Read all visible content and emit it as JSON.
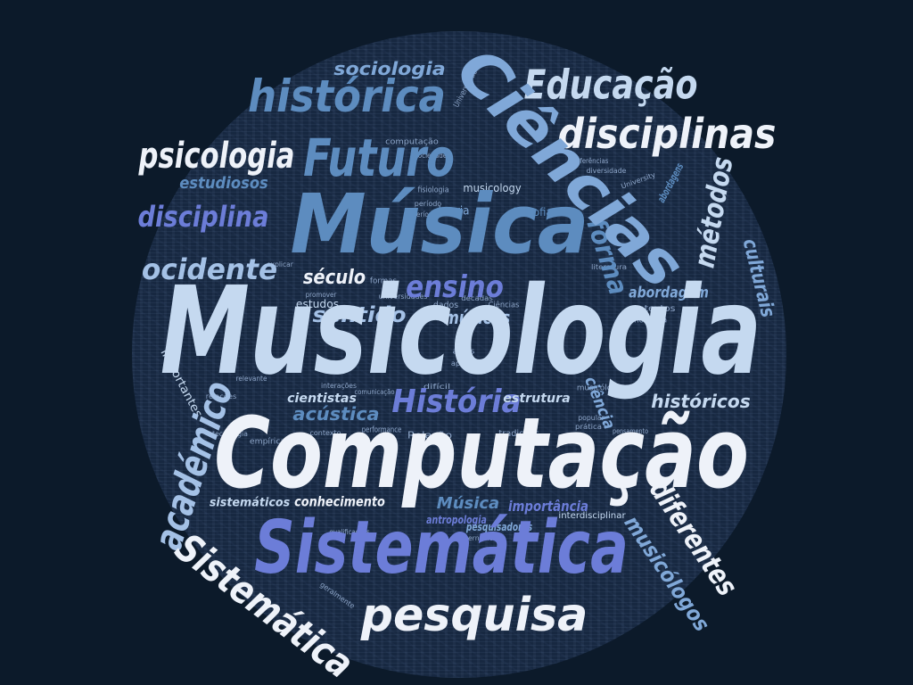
{
  "palette": {
    "background": "#0c1a2a",
    "cloud": "#172841",
    "white": "#eef2f9",
    "pale": "#c5d9f0",
    "light": "#a4c1e6",
    "sky": "#80a8d8",
    "steel": "#5d8cbf",
    "periwinkle": "#6c7dd8",
    "muted": "#8ea6c9"
  },
  "cloud": {
    "words": [
      "Musicologia",
      "Computação",
      "Sistemática",
      "Música",
      "Ciências",
      "Futuro",
      "histórica",
      "Educação",
      "disciplinas",
      "psicologia",
      "sociologia",
      "estudiosos",
      "disciplina",
      "ocidente",
      "métodos",
      "culturais",
      "forma",
      "ensino",
      "século",
      "sentido",
      "músicos",
      "abordagem",
      "académico",
      "Sistemática",
      "pesquisa",
      "História",
      "acústica",
      "cientistas",
      "históricos",
      "ciência",
      "estrutura",
      "conhecimento",
      "sistemáticos",
      "Música",
      "importância",
      "antropologia",
      "interdisciplinar",
      "pesquisadores",
      "diferentes",
      "musicólogos",
      "importantes",
      "abordagens",
      "teoria",
      "filosofia",
      "musicology",
      "fisiologia",
      "computação",
      "Universidade",
      "estudos",
      "contextos",
      "moderna",
      "Relação",
      "performance",
      "tradições",
      "Ciências",
      "dados",
      "musicólogo",
      "empírica",
      "tecnologia",
      "relações",
      "relevante",
      "interações",
      "comunicação",
      "qualificações",
      "geralmente",
      "difícil",
      "literatura",
      "prática",
      "pensamento",
      "popular",
      "sociedades",
      "conferências",
      "diversidade",
      "University",
      "período",
      "períodos",
      "universidades",
      "décadas",
      "formas",
      "promover",
      "explicar",
      "áreas",
      "apesar",
      "contexto",
      "internacional"
    ]
  }
}
